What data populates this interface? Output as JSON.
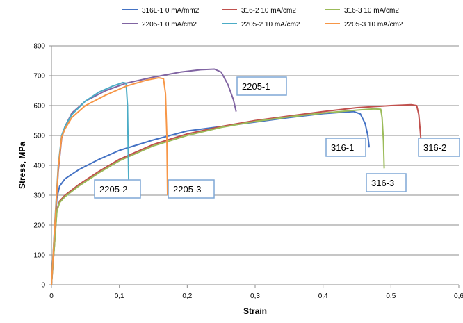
{
  "chart_data": {
    "type": "line",
    "title": "",
    "xlabel": "Strain",
    "ylabel": "Stress, MPa",
    "xlim": [
      0,
      0.6
    ],
    "ylim": [
      0,
      800
    ],
    "x_ticks": [
      0,
      0.1,
      0.2,
      0.3,
      0.4,
      0.5,
      0.6
    ],
    "x_tick_labels": [
      "0",
      "0,1",
      "0,2",
      "0,3",
      "0,4",
      "0,5",
      "0,6"
    ],
    "y_ticks": [
      0,
      100,
      200,
      300,
      400,
      500,
      600,
      700,
      800
    ],
    "y_tick_labels": [
      "0",
      "100",
      "200",
      "300",
      "400",
      "500",
      "600",
      "700",
      "800"
    ],
    "grid": "horizontal",
    "legend_position": "top",
    "series": [
      {
        "name": "316L-1  0 mA/mm2",
        "color": "#4472C4",
        "points": [
          [
            0,
            0
          ],
          [
            0.004,
            150
          ],
          [
            0.008,
            290
          ],
          [
            0.012,
            330
          ],
          [
            0.02,
            355
          ],
          [
            0.04,
            385
          ],
          [
            0.07,
            420
          ],
          [
            0.1,
            450
          ],
          [
            0.15,
            485
          ],
          [
            0.2,
            515
          ],
          [
            0.25,
            530
          ],
          [
            0.3,
            545
          ],
          [
            0.35,
            560
          ],
          [
            0.4,
            573
          ],
          [
            0.43,
            578
          ],
          [
            0.445,
            580
          ],
          [
            0.455,
            572
          ],
          [
            0.462,
            540
          ],
          [
            0.466,
            500
          ],
          [
            0.468,
            460
          ]
        ]
      },
      {
        "name": "316-2  10 mA/cm2",
        "color": "#C0504D",
        "points": [
          [
            0,
            0
          ],
          [
            0.004,
            120
          ],
          [
            0.008,
            250
          ],
          [
            0.012,
            280
          ],
          [
            0.02,
            300
          ],
          [
            0.04,
            335
          ],
          [
            0.07,
            380
          ],
          [
            0.1,
            420
          ],
          [
            0.15,
            470
          ],
          [
            0.2,
            505
          ],
          [
            0.25,
            530
          ],
          [
            0.3,
            550
          ],
          [
            0.35,
            565
          ],
          [
            0.4,
            580
          ],
          [
            0.45,
            593
          ],
          [
            0.5,
            600
          ],
          [
            0.53,
            603
          ],
          [
            0.538,
            600
          ],
          [
            0.541,
            570
          ],
          [
            0.543,
            520
          ],
          [
            0.544,
            490
          ]
        ]
      },
      {
        "name": "316-3  10 mA/cm2",
        "color": "#9BBB59",
        "points": [
          [
            0,
            0
          ],
          [
            0.004,
            120
          ],
          [
            0.008,
            245
          ],
          [
            0.012,
            275
          ],
          [
            0.02,
            295
          ],
          [
            0.04,
            330
          ],
          [
            0.07,
            375
          ],
          [
            0.1,
            415
          ],
          [
            0.15,
            465
          ],
          [
            0.2,
            500
          ],
          [
            0.25,
            527
          ],
          [
            0.3,
            547
          ],
          [
            0.35,
            562
          ],
          [
            0.4,
            575
          ],
          [
            0.45,
            585
          ],
          [
            0.475,
            589
          ],
          [
            0.485,
            588
          ],
          [
            0.487,
            560
          ],
          [
            0.489,
            480
          ],
          [
            0.49,
            390
          ]
        ]
      },
      {
        "name": "2205-1  0 mA/cm2",
        "color": "#8064A2",
        "points": [
          [
            0,
            0
          ],
          [
            0.005,
            200
          ],
          [
            0.01,
            380
          ],
          [
            0.015,
            490
          ],
          [
            0.02,
            530
          ],
          [
            0.03,
            575
          ],
          [
            0.05,
            615
          ],
          [
            0.08,
            650
          ],
          [
            0.11,
            675
          ],
          [
            0.15,
            695
          ],
          [
            0.19,
            712
          ],
          [
            0.22,
            720
          ],
          [
            0.24,
            722
          ],
          [
            0.25,
            712
          ],
          [
            0.26,
            670
          ],
          [
            0.268,
            620
          ],
          [
            0.272,
            580
          ]
        ]
      },
      {
        "name": "2205-2  10 mA/cm2",
        "color": "#4BACC6",
        "points": [
          [
            0,
            0
          ],
          [
            0.005,
            210
          ],
          [
            0.01,
            400
          ],
          [
            0.015,
            500
          ],
          [
            0.02,
            530
          ],
          [
            0.03,
            570
          ],
          [
            0.05,
            615
          ],
          [
            0.07,
            645
          ],
          [
            0.09,
            665
          ],
          [
            0.105,
            677
          ],
          [
            0.11,
            675
          ],
          [
            0.112,
            600
          ],
          [
            0.113,
            450
          ],
          [
            0.114,
            320
          ]
        ]
      },
      {
        "name": "2205-3  10 mA/cm2",
        "color": "#F79646",
        "points": [
          [
            0,
            0
          ],
          [
            0.005,
            200
          ],
          [
            0.01,
            390
          ],
          [
            0.015,
            495
          ],
          [
            0.02,
            522
          ],
          [
            0.03,
            560
          ],
          [
            0.05,
            600
          ],
          [
            0.08,
            635
          ],
          [
            0.11,
            665
          ],
          [
            0.14,
            685
          ],
          [
            0.158,
            693
          ],
          [
            0.165,
            690
          ],
          [
            0.168,
            640
          ],
          [
            0.17,
            500
          ],
          [
            0.171,
            300
          ]
        ]
      }
    ],
    "annotations": [
      {
        "text": "2205-1"
      },
      {
        "text": "2205-2"
      },
      {
        "text": "2205-3"
      },
      {
        "text": "316-1"
      },
      {
        "text": "316-2"
      },
      {
        "text": "316-3"
      }
    ]
  }
}
